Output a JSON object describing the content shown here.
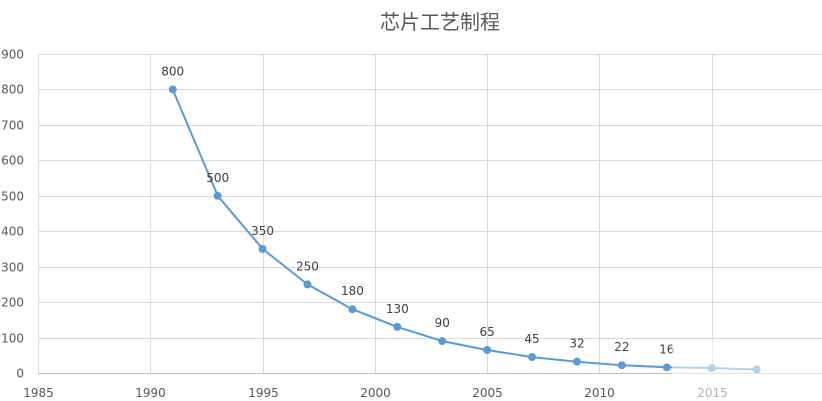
{
  "chart_data": {
    "type": "line",
    "title": "芯片工艺制程",
    "xlabel": "",
    "ylabel": "",
    "xlim": [
      1985,
      2020
    ],
    "ylim": [
      0,
      900
    ],
    "x_ticks": [
      1985,
      1990,
      1995,
      2000,
      2005,
      2010,
      2015
    ],
    "y_ticks": [
      0,
      100,
      200,
      300,
      400,
      500,
      600,
      700,
      800,
      900
    ],
    "grid": true,
    "legend": "none",
    "series_color": "#5b9bd5",
    "series": [
      {
        "x": [
          1991,
          1993,
          1995,
          1997,
          1999,
          2001,
          2003,
          2005,
          2007,
          2009,
          2011,
          2013,
          2015,
          2017
        ],
        "values": [
          800,
          500,
          350,
          250,
          180,
          130,
          90,
          65,
          45,
          32,
          22,
          16,
          14,
          10
        ],
        "data_labels": [
          "800",
          "500",
          "350",
          "250",
          "180",
          "130",
          "90",
          "65",
          "45",
          "32",
          "22",
          "16",
          "",
          ""
        ]
      }
    ]
  }
}
